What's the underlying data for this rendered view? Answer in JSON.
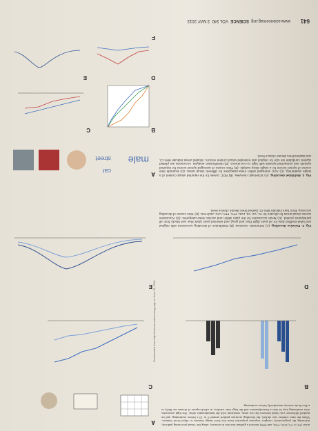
{
  "text_top": "areas (V1 to V3, LOC, FFA, and PPA) showed a gradual increase in accuracy along the visual processing pathway, mirroring the progressively complex response properties from low-level image features to object-level features. When the time window was shifted, the decoding accuracy peaked around 0 to 10 s before awakening, and no marked difference was found between the two areas, consistent with the hemodynamic delay. The high accuracies after awakening may be due to hemodynamics and the large time window, in which reports of dreams are likely to reflect brain activity immediately before awakening.",
  "figures": [
    {
      "label": "Fig. 3.",
      "title": "Pairwise decoding.",
      "caption": "(A) Schematic overview. (B) Distribution of decoding accuracies with original and label-shuffled data for all pairs (light blue and gray) and selected pairs (dark blue and black) from all participants pooled. (C) Mean accuracies for the pairs within and across meta-categories. (D) Accuracies across visual areas for all pairs for V1, V2, V3, LOC, FFA, PPA, LVC, and HVC. (E) Time course of decoding accuracy. Error bars indicate 95% CI; dashed lines denote chance level."
    },
    {
      "label": "Fig. 4.",
      "title": "Multilabel decoding.",
      "caption": "(A) Schematic overview. (B) ROC curves for the reported visual content of a single awakening. (C) AUC averaged within meta-categories for different visual areas. (D) Example time course of synset scores for a single sleep sample. (E) Time course of averaged synset scores for reported synsets and unreported synsets with high co-occurrence. (F) Identification analysis. Accuracies are plotted against candidate set size for original and extended visual content vectors. Shaded areas indicate 95% CI, and dashed lines denote chance level."
    }
  ],
  "panel_labels": [
    "A",
    "B",
    "C",
    "D",
    "E",
    "F"
  ],
  "words": [
    "male",
    "car",
    "street"
  ],
  "footer": {
    "url": "www.sciencemag.org",
    "journal": "SCIENCE",
    "volume": "VOL 340",
    "date": "3 MAY 2013",
    "page": "641"
  },
  "side_note": "Downloaded from http://science.sciencemag.org/ on June 19, 2016"
}
